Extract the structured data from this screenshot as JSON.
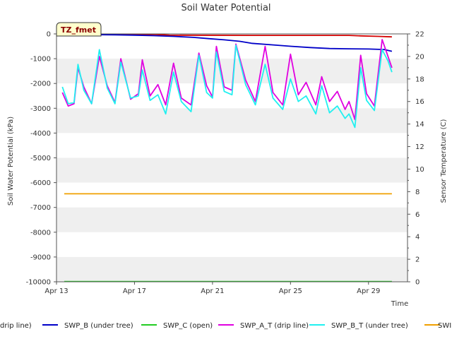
{
  "chart_data": {
    "type": "line",
    "title": "Soil Water Potential",
    "xlabel": "Time",
    "ylabel": "Soil Water Potential (kPa)",
    "y2label": "Sensor Temperature (C)",
    "badge": "TZ_fmet",
    "x_ticks": [
      {
        "day": 0,
        "label": "Apr 13"
      },
      {
        "day": 4,
        "label": "Apr 17"
      },
      {
        "day": 8,
        "label": "Apr 21"
      },
      {
        "day": 12,
        "label": "Apr 25"
      },
      {
        "day": 16,
        "label": "Apr 29"
      }
    ],
    "xlim": [
      0,
      18
    ],
    "ylim": [
      -10000,
      0
    ],
    "y_ticks": [
      0,
      -1000,
      -2000,
      -3000,
      -4000,
      -5000,
      -6000,
      -7000,
      -8000,
      -9000,
      -10000
    ],
    "y2lim": [
      0,
      22
    ],
    "y2_ticks": [
      0,
      2,
      4,
      6,
      8,
      10,
      12,
      14,
      16,
      18,
      20,
      22
    ],
    "series": [
      {
        "name": "SWP_A (drip line)",
        "legend_label": "drip line)",
        "color": "#d40000",
        "axis": "left",
        "x": [
          0.8,
          5.0,
          5.8,
          10.0,
          15.0,
          15.6,
          16.5,
          17.2
        ],
        "y": [
          -20,
          -20,
          -50,
          -60,
          -60,
          -80,
          -100,
          -120
        ]
      },
      {
        "name": "SWP_B (under tree)",
        "legend_label": "SWP_B (under tree)",
        "color": "#0000c8",
        "axis": "left",
        "x": [
          0.8,
          2.0,
          3.0,
          4.0,
          5.0,
          6.0,
          7.0,
          7.8,
          8.6,
          9.4,
          10.0,
          11.0,
          12.0,
          13.0,
          14.0,
          15.0,
          16.0,
          16.8,
          17.2
        ],
        "y": [
          -20,
          -30,
          -40,
          -50,
          -70,
          -100,
          -140,
          -190,
          -240,
          -300,
          -380,
          -440,
          -500,
          -550,
          -590,
          -600,
          -610,
          -630,
          -700
        ]
      },
      {
        "name": "SWP_C (open)",
        "legend_label": "SWP_C (open)",
        "color": "#22cc22",
        "axis": "left",
        "x": [
          0.4,
          17.2
        ],
        "y": [
          -9990,
          -9990
        ]
      },
      {
        "name": "SWP_A_T (drip line)",
        "legend_label": "SWP_A_T (drip line)",
        "color": "#e000e0",
        "axis": "right",
        "x": [
          0.3,
          0.6,
          0.9,
          1.1,
          1.4,
          1.8,
          2.2,
          2.6,
          3.0,
          3.3,
          3.8,
          4.2,
          4.4,
          4.8,
          5.2,
          5.6,
          6.0,
          6.4,
          6.9,
          7.3,
          7.7,
          8.0,
          8.2,
          8.6,
          9.0,
          9.2,
          9.7,
          10.2,
          10.7,
          11.1,
          11.6,
          12.0,
          12.4,
          12.8,
          13.3,
          13.6,
          14.0,
          14.4,
          14.8,
          15.0,
          15.3,
          15.6,
          15.9,
          16.3,
          16.7,
          17.0,
          17.2
        ],
        "y": [
          16.8,
          15.6,
          15.8,
          19.0,
          17.3,
          15.8,
          20.0,
          17.4,
          15.9,
          19.8,
          16.2,
          16.7,
          19.7,
          16.5,
          17.5,
          15.7,
          19.4,
          16.3,
          15.7,
          20.3,
          17.4,
          16.4,
          20.9,
          17.3,
          17.0,
          21.1,
          17.9,
          16.0,
          20.9,
          16.8,
          15.7,
          20.2,
          16.6,
          17.7,
          15.7,
          18.2,
          16.0,
          16.9,
          15.3,
          16.0,
          14.4,
          20.1,
          16.7,
          15.6,
          21.5,
          20.0,
          19.0
        ]
      },
      {
        "name": "SWP_B_T (under tree)",
        "legend_label": "SWP_B_T (under tree)",
        "color": "#20f0f0",
        "axis": "right",
        "x": [
          0.3,
          0.6,
          0.9,
          1.1,
          1.4,
          1.8,
          2.2,
          2.6,
          3.0,
          3.3,
          3.8,
          4.2,
          4.4,
          4.8,
          5.2,
          5.6,
          6.0,
          6.4,
          6.9,
          7.3,
          7.7,
          8.0,
          8.2,
          8.6,
          9.0,
          9.2,
          9.7,
          10.2,
          10.7,
          11.1,
          11.6,
          12.0,
          12.4,
          12.8,
          13.3,
          13.6,
          14.0,
          14.4,
          14.8,
          15.0,
          15.3,
          15.6,
          15.9,
          16.3,
          16.7,
          17.0,
          17.2
        ],
        "y": [
          17.3,
          15.8,
          15.9,
          19.3,
          17.0,
          15.8,
          20.6,
          17.2,
          15.8,
          19.5,
          16.3,
          16.5,
          18.8,
          16.1,
          16.6,
          14.9,
          18.6,
          16.0,
          15.1,
          20.1,
          16.8,
          16.3,
          20.4,
          16.9,
          16.6,
          21.0,
          17.5,
          15.7,
          19.3,
          16.3,
          15.3,
          18.0,
          16.0,
          16.5,
          14.9,
          17.4,
          15.0,
          15.6,
          14.5,
          14.9,
          13.7,
          19.0,
          16.1,
          15.2,
          20.6,
          19.6,
          18.6
        ]
      },
      {
        "name": "SWP",
        "legend_label": "SWI",
        "color": "#f0a000",
        "axis": "left",
        "x": [
          0.4,
          17.2
        ],
        "y": [
          -6450,
          -6450
        ]
      }
    ],
    "legend_position": "bottom",
    "grid": false
  }
}
